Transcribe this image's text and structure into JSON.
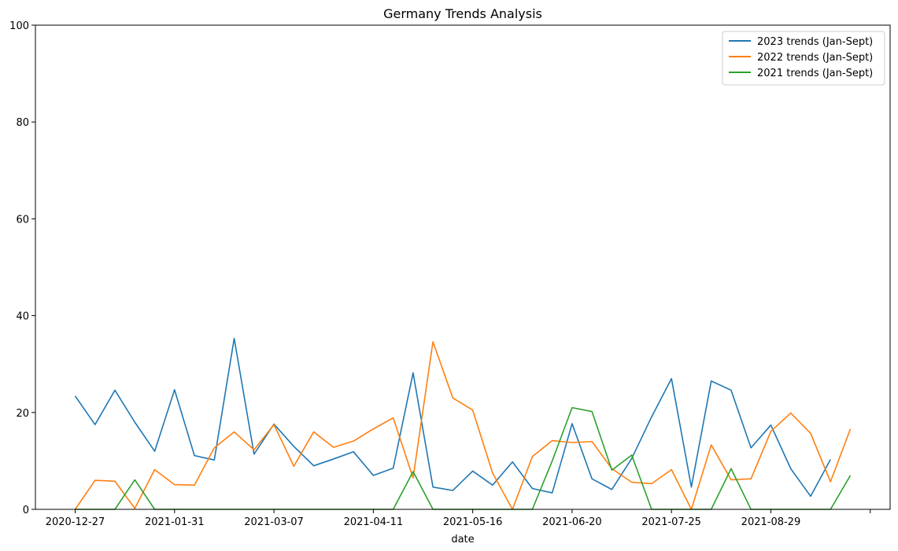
{
  "chart_data": {
    "type": "line",
    "title": "Germany Trends Analysis",
    "xlabel": "date",
    "ylabel": "",
    "ylim": [
      0,
      100
    ],
    "yticks": [
      0,
      20,
      40,
      60,
      80,
      100
    ],
    "xticks": [
      {
        "index": 0,
        "label": "2020-12-27"
      },
      {
        "index": 5,
        "label": "2021-01-31"
      },
      {
        "index": 10,
        "label": "2021-03-07"
      },
      {
        "index": 15,
        "label": "2021-04-11"
      },
      {
        "index": 20,
        "label": "2021-05-16"
      },
      {
        "index": 25,
        "label": "2021-06-20"
      },
      {
        "index": 30,
        "label": "2021-07-25"
      },
      {
        "index": 35,
        "label": "2021-08-29"
      },
      {
        "index": 40,
        "label": ""
      }
    ],
    "x_index_range": [
      -2,
      41
    ],
    "legend_position": "top-right",
    "grid": false,
    "series": [
      {
        "name": "2023 trends (Jan-Sept)",
        "color": "#1f77b4",
        "values": [
          23.4,
          17.5,
          24.6,
          18.0,
          12.0,
          24.7,
          11.1,
          10.2,
          35.3,
          11.4,
          17.6,
          13.0,
          9.0,
          10.4,
          11.9,
          7.0,
          8.5,
          28.2,
          4.6,
          3.9,
          7.9,
          5.0,
          9.8,
          4.3,
          3.4,
          17.7,
          6.3,
          4.1,
          10.5,
          19.1,
          27.0,
          4.6,
          26.5,
          24.6,
          12.7,
          17.4,
          8.4,
          2.7,
          10.3
        ]
      },
      {
        "name": "2022 trends (Jan-Sept)",
        "color": "#ff7f0e",
        "values": [
          0.0,
          6.0,
          5.8,
          0.2,
          8.2,
          5.1,
          5.0,
          12.7,
          16.0,
          12.3,
          17.5,
          8.9,
          16.0,
          12.8,
          14.1,
          16.6,
          18.9,
          6.5,
          34.6,
          23.0,
          20.5,
          7.5,
          0.0,
          10.9,
          14.2,
          13.8,
          14.0,
          8.4,
          5.6,
          5.3,
          8.2,
          0.0,
          13.3,
          6.1,
          6.3,
          16.1,
          19.9,
          15.7,
          5.7,
          16.6
        ]
      },
      {
        "name": "2021 trends (Jan-Sept)",
        "color": "#2ca02c",
        "values": [
          0,
          0,
          0,
          6.1,
          0,
          0,
          0,
          0,
          0,
          0,
          0,
          0,
          0,
          0,
          0,
          0,
          0,
          7.8,
          0,
          0,
          0,
          0,
          0,
          0,
          10.0,
          21.0,
          20.2,
          8.1,
          11.2,
          0,
          0,
          0,
          0,
          8.4,
          0,
          0,
          0,
          0,
          0,
          7.0
        ]
      }
    ]
  }
}
